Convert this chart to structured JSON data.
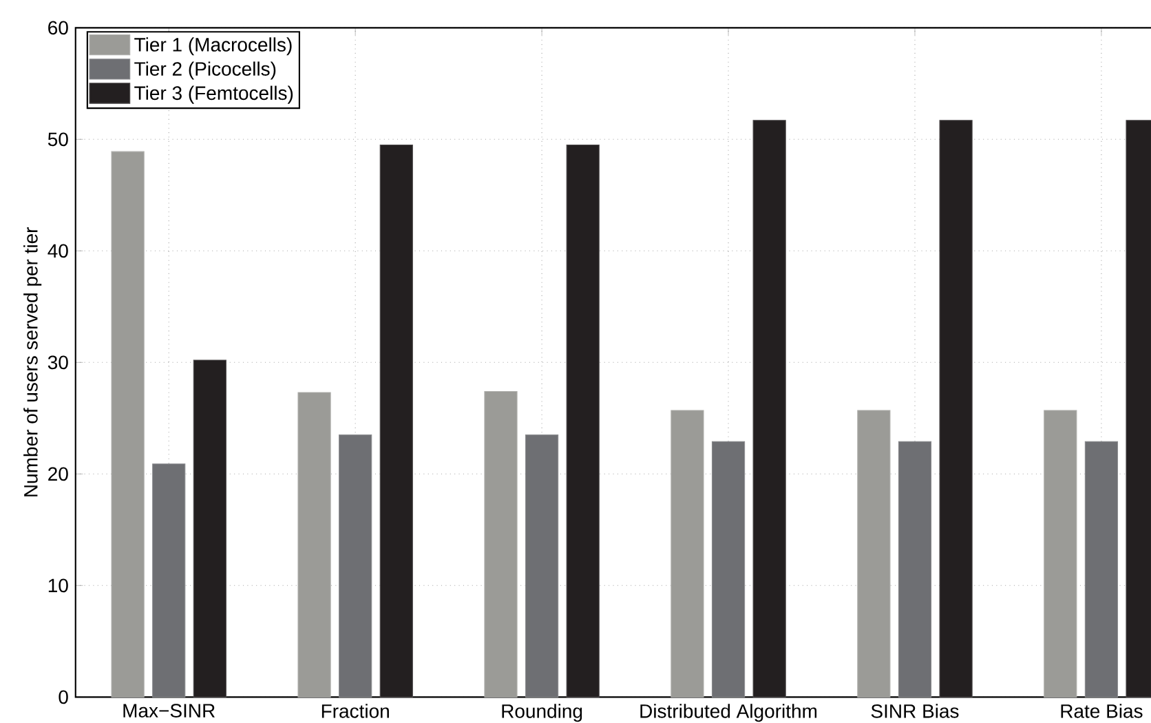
{
  "chart_data": {
    "type": "bar",
    "ylabel": "Number of users served per tier",
    "categories": [
      "Max−SINR",
      "Fraction",
      "Rounding",
      "Distributed Algorithm",
      "SINR Bias",
      "Rate Bias"
    ],
    "series": [
      {
        "name": "Tier 1 (Macrocells)",
        "color": "#9b9b97",
        "values": [
          48.9,
          27.3,
          27.4,
          25.7,
          25.7,
          25.7
        ]
      },
      {
        "name": "Tier 2 (Picocells)",
        "color": "#6e6f73",
        "values": [
          20.9,
          23.5,
          23.5,
          22.9,
          22.9,
          22.9
        ]
      },
      {
        "name": "Tier 3 (Femtocells)",
        "color": "#231f20",
        "values": [
          30.2,
          49.5,
          49.5,
          51.7,
          51.7,
          51.7
        ]
      }
    ],
    "ylim": [
      0,
      60
    ],
    "yticks": [
      0,
      10,
      20,
      30,
      40,
      50,
      60
    ],
    "grid": true,
    "legend": "top left"
  }
}
